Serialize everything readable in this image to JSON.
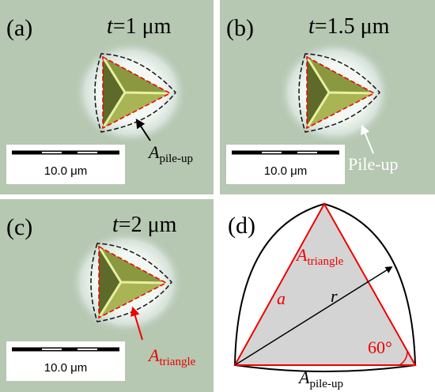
{
  "panels": [
    {
      "label": "(a)",
      "thickness": {
        "symbol": "t",
        "text": "=1 μm"
      },
      "scale_bar": "10.0 μm",
      "annotation": {
        "symbol": "A",
        "subscript": "pile-up"
      }
    },
    {
      "label": "(b)",
      "thickness": {
        "symbol": "t",
        "text": "=1.5 μm"
      },
      "scale_bar": "10.0 μm",
      "annotation": "Pile-up"
    },
    {
      "label": "(c)",
      "thickness": {
        "symbol": "t",
        "text": "=2 μm"
      },
      "scale_bar": "10.0 μm",
      "annotation": {
        "symbol": "A",
        "subscript": "triangle"
      }
    }
  ],
  "diagram": {
    "label": "(d)",
    "triangle_area": {
      "symbol": "A",
      "subscript": "triangle"
    },
    "side": "a",
    "radius": "r",
    "angle": "60°",
    "pile_up_area": {
      "symbol": "A",
      "subscript": "pile-up"
    }
  }
}
